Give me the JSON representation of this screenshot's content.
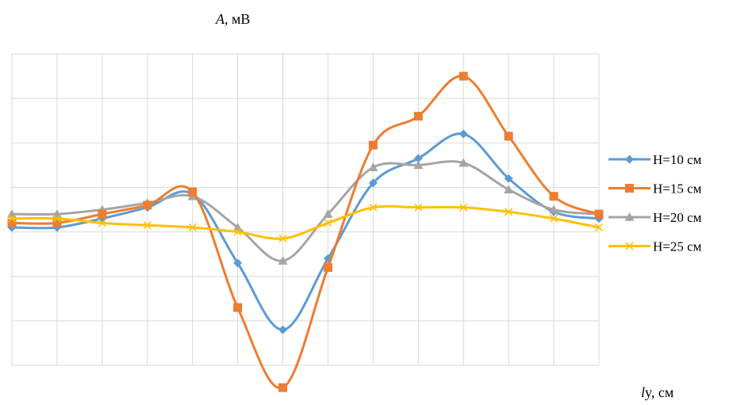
{
  "chart_data": {
    "type": "line",
    "ylabel_italic": "A",
    "ylabel_rest": ", мВ",
    "xlabel_italic": "l",
    "xlabel_rest": "y, см",
    "grid": true,
    "legend_position": "right",
    "x": [
      0,
      1,
      2,
      3,
      4,
      5,
      6,
      7,
      8,
      9,
      10,
      11,
      12,
      13
    ],
    "ylim": [
      -3.5,
      3.5
    ],
    "series": [
      {
        "name": "H=10 см",
        "color": "#5B9BD5",
        "marker": "diamond",
        "values": [
          -0.4,
          -0.4,
          -0.2,
          0.05,
          0.35,
          -1.2,
          -2.7,
          -1.1,
          0.6,
          1.15,
          1.7,
          0.7,
          -0.05,
          -0.2
        ]
      },
      {
        "name": "H=15 см",
        "color": "#ED7D31",
        "marker": "square",
        "values": [
          -0.3,
          -0.3,
          -0.1,
          0.1,
          0.4,
          -2.2,
          -4.0,
          -1.3,
          1.45,
          2.1,
          3.0,
          1.65,
          0.3,
          -0.1
        ]
      },
      {
        "name": "H=20 см",
        "color": "#A5A5A5",
        "marker": "triangle",
        "values": [
          -0.1,
          -0.1,
          0.0,
          0.15,
          0.3,
          -0.4,
          -1.15,
          -0.1,
          0.95,
          1.0,
          1.05,
          0.45,
          0.0,
          -0.1
        ]
      },
      {
        "name": "H=25 см",
        "color": "#FFC000",
        "marker": "x",
        "values": [
          -0.2,
          -0.2,
          -0.3,
          -0.35,
          -0.4,
          -0.5,
          -0.65,
          -0.3,
          0.05,
          0.05,
          0.05,
          -0.05,
          -0.2,
          -0.4
        ]
      }
    ]
  }
}
